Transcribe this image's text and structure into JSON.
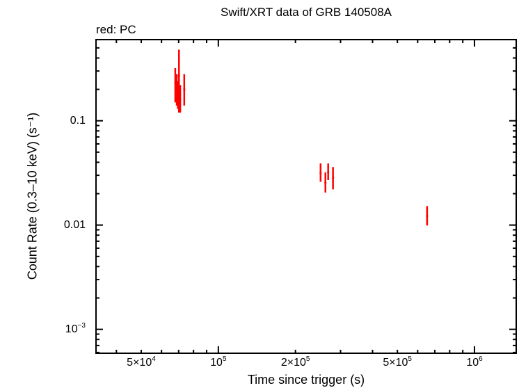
{
  "chart_data": {
    "type": "scatter",
    "title": "Swift/XRT data of GRB 140508A",
    "subtitle": "red: PC",
    "xlabel": "Time since trigger (s)",
    "ylabel": "Count Rate (0.3–10 keV) (s⁻¹)",
    "xscale": "log",
    "yscale": "log",
    "xlim": [
      33300,
      1455000
    ],
    "ylim": [
      0.00059,
      0.6
    ],
    "grid": false,
    "legend": "none",
    "x_ticks": [
      {
        "value": 50000,
        "label": "5×10",
        "exp": "4"
      },
      {
        "value": 100000,
        "label": "10",
        "exp": "5"
      },
      {
        "value": 200000,
        "label": "2×10",
        "exp": "5"
      },
      {
        "value": 500000,
        "label": "5×10",
        "exp": "5"
      },
      {
        "value": 1000000,
        "label": "10",
        "exp": "6"
      }
    ],
    "y_ticks": [
      {
        "value": 0.1,
        "label": "0.1",
        "exp": ""
      },
      {
        "value": 0.01,
        "label": "0.01",
        "exp": ""
      },
      {
        "value": 0.001,
        "label": "10",
        "exp": "−3"
      }
    ],
    "series": [
      {
        "name": "PC",
        "color": "#ff0000",
        "points": [
          {
            "t": 67900,
            "rate": 0.23,
            "rate_lo": 0.15,
            "rate_hi": 0.32
          },
          {
            "t": 68800,
            "rate": 0.2,
            "rate_lo": 0.14,
            "rate_hi": 0.28
          },
          {
            "t": 69500,
            "rate": 0.18,
            "rate_lo": 0.13,
            "rate_hi": 0.24
          },
          {
            "t": 70200,
            "rate": 0.27,
            "rate_lo": 0.12,
            "rate_hi": 0.48
          },
          {
            "t": 71000,
            "rate": 0.16,
            "rate_lo": 0.12,
            "rate_hi": 0.22
          },
          {
            "t": 73600,
            "rate": 0.2,
            "rate_lo": 0.14,
            "rate_hi": 0.28
          },
          {
            "t": 250700,
            "rate": 0.0316,
            "rate_lo": 0.026,
            "rate_hi": 0.039
          },
          {
            "t": 261800,
            "rate": 0.0255,
            "rate_lo": 0.0205,
            "rate_hi": 0.032
          },
          {
            "t": 268400,
            "rate": 0.0321,
            "rate_lo": 0.027,
            "rate_hi": 0.039
          },
          {
            "t": 280300,
            "rate": 0.0284,
            "rate_lo": 0.022,
            "rate_hi": 0.036
          },
          {
            "t": 653000,
            "rate": 0.0122,
            "rate_lo": 0.0099,
            "rate_hi": 0.0152
          }
        ]
      }
    ]
  }
}
